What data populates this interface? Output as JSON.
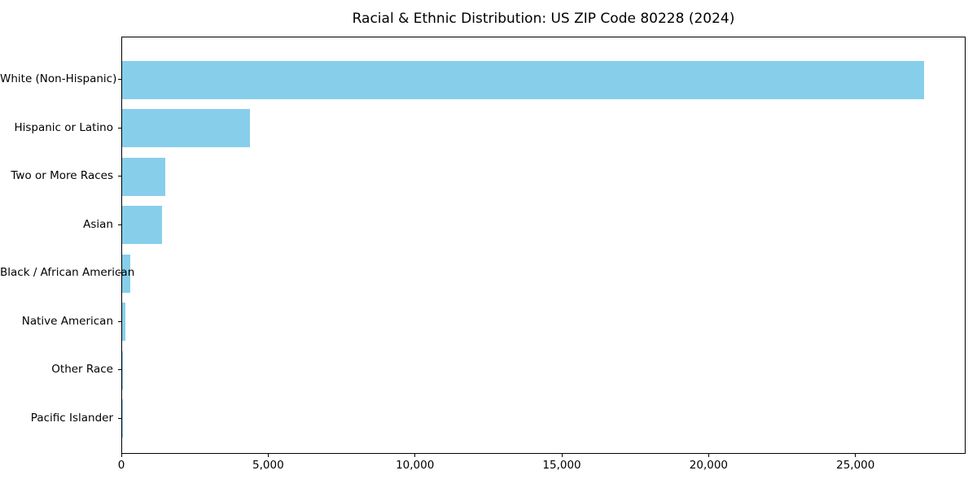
{
  "chart_data": {
    "type": "bar",
    "orientation": "horizontal",
    "title": "Racial & Ethnic Distribution: US ZIP Code 80228 (2024)",
    "categories": [
      "White (Non-Hispanic)",
      "Hispanic or Latino",
      "Two or More Races",
      "Asian",
      "Black / African American",
      "Native American",
      "Other Race",
      "Pacific Islander"
    ],
    "values": [
      27360,
      4370,
      1470,
      1370,
      290,
      120,
      25,
      10
    ],
    "xlabel": "",
    "ylabel": "",
    "xlim": [
      0,
      28750
    ],
    "x_ticks": [
      0,
      5000,
      10000,
      15000,
      20000,
      25000
    ],
    "x_tick_labels": [
      "0",
      "5,000",
      "10,000",
      "15,000",
      "20,000",
      "25,000"
    ],
    "bar_color": "#87CEEB",
    "axis_color": "#000000",
    "grid": false,
    "legend": null
  }
}
